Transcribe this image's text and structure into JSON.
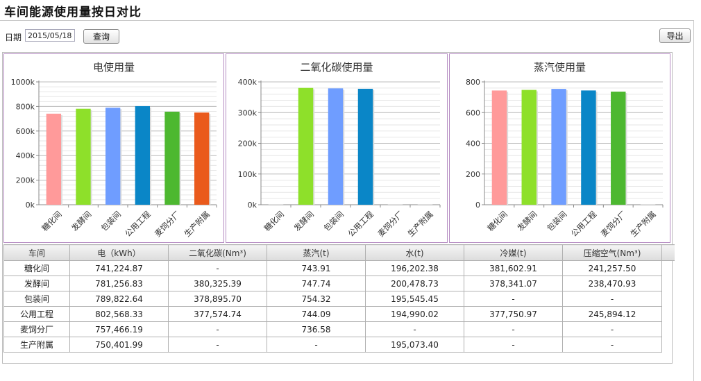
{
  "page": {
    "title": "车间能源使用量按日对比"
  },
  "toolbar": {
    "date_label": "日期",
    "date_value": "2015/05/18",
    "query_label": "查询",
    "export_label": "导出"
  },
  "colors": {
    "bars": [
      "#ff9a9a",
      "#8ee02a",
      "#6f9dff",
      "#0a86c7",
      "#4db830",
      "#ea5a1c"
    ],
    "panel_border": "#b58bc2"
  },
  "chart_data": [
    {
      "type": "bar",
      "title": "电使用量",
      "categories": [
        "糖化间",
        "发酵间",
        "包装间",
        "公用工程",
        "麦饲分厂",
        "生产附属"
      ],
      "values": [
        741224.87,
        781256.83,
        789822.64,
        802568.33,
        757466.19,
        750401.99
      ],
      "ylim": [
        0,
        1000000
      ],
      "yticks": [
        0,
        200000,
        400000,
        600000,
        800000,
        1000000
      ],
      "ytick_labels": [
        "0k",
        "200k",
        "400k",
        "600k",
        "800k",
        "1000k"
      ],
      "grid": true
    },
    {
      "type": "bar",
      "title": "二氧化碳使用量",
      "categories": [
        "糖化间",
        "发酵间",
        "包装间",
        "公用工程",
        "麦饲分厂",
        "生产附属"
      ],
      "values": [
        0,
        380325.39,
        378895.7,
        377574.74,
        0,
        0
      ],
      "ylim": [
        0,
        400000
      ],
      "yticks": [
        0,
        100000,
        200000,
        300000,
        400000
      ],
      "ytick_labels": [
        "0k",
        "100k",
        "200k",
        "300k",
        "400k"
      ],
      "grid": true
    },
    {
      "type": "bar",
      "title": "蒸汽使用量",
      "categories": [
        "糖化间",
        "发酵间",
        "包装间",
        "公用工程",
        "麦饲分厂",
        "生产附属"
      ],
      "values": [
        743.91,
        747.74,
        754.32,
        744.09,
        736.58,
        0
      ],
      "ylim": [
        0,
        800
      ],
      "yticks": [
        0,
        200,
        400,
        600,
        800
      ],
      "ytick_labels": [
        "0",
        "200",
        "400",
        "600",
        "800"
      ],
      "grid": true
    }
  ],
  "table": {
    "headers": [
      "车间",
      "电（kWh）",
      "二氧化碳(Nm³)",
      "蒸汽(t)",
      "水(t)",
      "冷媒(t)",
      "压缩空气(Nm³)"
    ],
    "rows": [
      [
        "糖化间",
        "741,224.87",
        "-",
        "743.91",
        "196,202.38",
        "381,602.91",
        "241,257.50"
      ],
      [
        "发酵间",
        "781,256.83",
        "380,325.39",
        "747.74",
        "200,478.73",
        "378,341.07",
        "238,470.93"
      ],
      [
        "包装间",
        "789,822.64",
        "378,895.70",
        "754.32",
        "195,545.45",
        "-",
        "-"
      ],
      [
        "公用工程",
        "802,568.33",
        "377,574.74",
        "744.09",
        "194,990.02",
        "377,750.97",
        "245,894.12"
      ],
      [
        "麦饲分厂",
        "757,466.19",
        "-",
        "736.58",
        "-",
        "-",
        "-"
      ],
      [
        "生产附属",
        "750,401.99",
        "-",
        "-",
        "195,073.40",
        "-",
        "-"
      ]
    ]
  }
}
